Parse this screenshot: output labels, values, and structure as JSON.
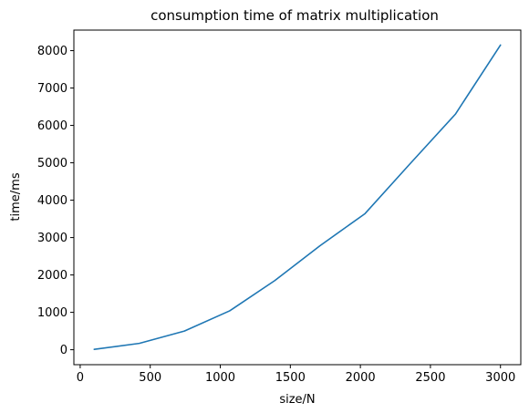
{
  "chart_data": {
    "type": "line",
    "title": "consumption time of matrix multiplication",
    "xlabel": "size/N",
    "ylabel": "time/ms",
    "xlim": [
      -45,
      3145
    ],
    "ylim": [
      -400,
      8550
    ],
    "xticks": [
      0,
      500,
      1000,
      1500,
      2000,
      2500,
      3000
    ],
    "yticks": [
      0,
      1000,
      2000,
      3000,
      4000,
      5000,
      6000,
      7000,
      8000
    ],
    "xtick_labels": [
      "0",
      "500",
      "1000",
      "1500",
      "2000",
      "2500",
      "3000"
    ],
    "ytick_labels": [
      "0",
      "1000",
      "2000",
      "3000",
      "4000",
      "5000",
      "6000",
      "7000",
      "8000"
    ],
    "grid": false,
    "series": [
      {
        "color": "#1f77b4",
        "x": [
          100,
          422,
          744,
          1067,
          1389,
          1711,
          2033,
          2356,
          2678,
          3000
        ],
        "y": [
          10,
          170,
          500,
          1040,
          1850,
          2780,
          3640,
          4980,
          6300,
          8150
        ]
      }
    ]
  }
}
